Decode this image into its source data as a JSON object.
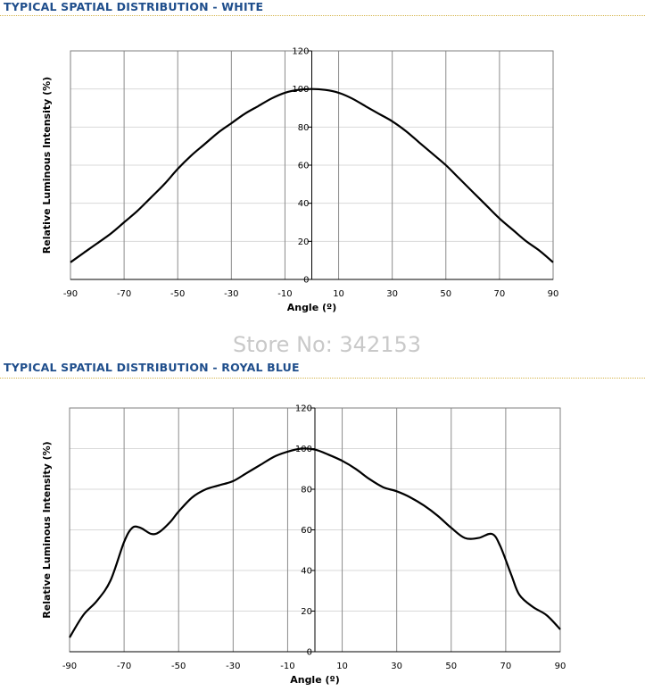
{
  "watermark": "Store No: 342153",
  "chart_data": [
    {
      "type": "line",
      "title": "TYPICAL SPATIAL DISTRIBUTION - WHITE",
      "xlabel": "Angle (º)",
      "ylabel": "Relative Luminous Intensity (%)",
      "xlim": [
        -90,
        90
      ],
      "ylim": [
        0,
        120
      ],
      "xticks": [
        -90,
        -70,
        -50,
        -30,
        -10,
        10,
        30,
        50,
        70,
        90
      ],
      "yticks": [
        0,
        20,
        40,
        60,
        80,
        100,
        120
      ],
      "grid": true,
      "series": [
        {
          "x": [
            -90,
            -85,
            -80,
            -75,
            -70,
            -65,
            -60,
            -55,
            -50,
            -45,
            -40,
            -35,
            -30,
            -25,
            -20,
            -15,
            -10,
            -5,
            0,
            5,
            10,
            15,
            20,
            25,
            30,
            35,
            40,
            45,
            50,
            55,
            60,
            65,
            70,
            75,
            80,
            85,
            90
          ],
          "y": [
            9,
            14,
            19,
            24,
            30,
            36,
            43,
            50,
            58,
            65,
            71,
            77,
            82,
            87,
            91,
            95,
            98,
            99.5,
            100,
            99.5,
            98,
            95,
            91,
            87,
            83,
            78,
            72,
            66,
            60,
            53,
            46,
            39,
            32,
            26,
            20,
            15,
            9
          ]
        }
      ]
    },
    {
      "type": "line",
      "title": "TYPICAL SPATIAL DISTRIBUTION - ROYAL BLUE",
      "xlabel": "Angle (º)",
      "ylabel": "Relative Luminous Intensity (%)",
      "xlim": [
        -90,
        90
      ],
      "ylim": [
        0,
        120
      ],
      "xticks": [
        -90,
        -70,
        -50,
        -30,
        -10,
        10,
        30,
        50,
        70,
        90
      ],
      "yticks": [
        0,
        20,
        40,
        60,
        80,
        100,
        120
      ],
      "grid": true,
      "series": [
        {
          "x": [
            -90,
            -85,
            -80,
            -75,
            -70,
            -67,
            -64,
            -60,
            -57,
            -53,
            -50,
            -45,
            -40,
            -35,
            -30,
            -25,
            -20,
            -15,
            -10,
            -5,
            0,
            5,
            10,
            15,
            20,
            25,
            30,
            35,
            40,
            45,
            50,
            55,
            60,
            65,
            68,
            72,
            75,
            80,
            85,
            90
          ],
          "y": [
            7,
            18,
            25,
            35,
            54,
            61,
            61,
            58,
            59,
            64,
            69,
            76,
            80,
            82,
            84,
            88,
            92,
            96,
            98.5,
            100,
            99.5,
            97,
            94,
            90,
            85,
            81,
            79,
            76,
            72,
            67,
            61,
            56,
            56,
            58,
            52,
            38,
            28,
            22,
            18,
            11
          ]
        }
      ]
    }
  ]
}
